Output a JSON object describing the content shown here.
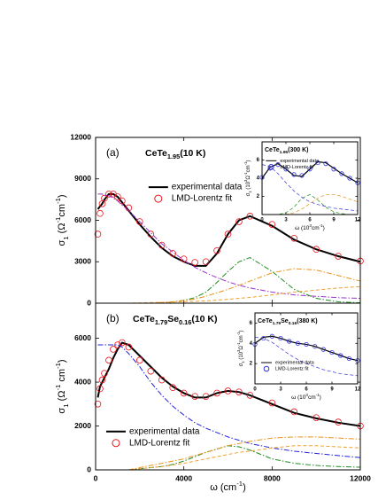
{
  "chart_data": [
    {
      "type": "line",
      "panel_label": "(a)",
      "title": [
        {
          "t": "CeTe"
        },
        {
          "t": "1.95",
          "s": "sub"
        },
        {
          "t": "(10 K)"
        }
      ],
      "ylabel": [
        {
          "t": "σ"
        },
        {
          "t": "1",
          "s": "sub"
        },
        {
          "t": " (Ω"
        },
        {
          "t": "-1",
          "s": "super"
        },
        {
          "t": "cm"
        },
        {
          "t": "-1",
          "s": "super"
        },
        {
          "t": ")"
        }
      ],
      "x": [
        100,
        200,
        300,
        400,
        600,
        800,
        1000,
        1200,
        1500,
        2000,
        2500,
        3000,
        3500,
        4000,
        4500,
        5000,
        5500,
        6000,
        6500,
        7000,
        8000,
        9000,
        10000,
        11000,
        12000
      ],
      "xlim": [
        0,
        12000
      ],
      "xticks": [
        0,
        4000,
        8000,
        12000
      ],
      "xtick_labels": false,
      "ylim": [
        0,
        12000
      ],
      "yticks": [
        0,
        3000,
        6000,
        9000,
        12000
      ],
      "legend": "upper center",
      "series": [
        {
          "name": "experimental data",
          "color": "#000000",
          "style": "solid",
          "values": [
            6800,
            7000,
            7200,
            7500,
            7900,
            7900,
            7700,
            7300,
            6700,
            5700,
            4800,
            4000,
            3400,
            3000,
            2700,
            2700,
            3600,
            5000,
            6000,
            6300,
            5600,
            4600,
            3900,
            3400,
            3000
          ]
        },
        {
          "name": "LMD-Lorentz fit",
          "color": "#e8141e",
          "style": "circles",
          "values": [
            5000,
            6500,
            7200,
            7600,
            7900,
            7900,
            7700,
            7400,
            6900,
            5900,
            5000,
            4200,
            3600,
            3200,
            2950,
            3000,
            3800,
            5000,
            5900,
            6300,
            5700,
            4700,
            3900,
            3400,
            3050
          ]
        },
        {
          "color": "#9933cc",
          "style": "dashdot",
          "values": [
            7900,
            7900,
            7900,
            7800,
            7800,
            7600,
            7400,
            7100,
            6700,
            5900,
            5100,
            4300,
            3700,
            3100,
            2600,
            2200,
            1850,
            1550,
            1300,
            1100,
            800,
            600,
            500,
            400,
            350
          ]
        },
        {
          "color": "#228b22",
          "style": "dashdot",
          "values": [
            0,
            0,
            0,
            0,
            0,
            0,
            0,
            0,
            0,
            0,
            0,
            0,
            100,
            200,
            400,
            800,
            1500,
            2300,
            3000,
            3300,
            2300,
            1000,
            350,
            100,
            30
          ]
        },
        {
          "color": "#e8941a",
          "style": "dashdot",
          "values": [
            0,
            0,
            0,
            0,
            0,
            0,
            0,
            0,
            0,
            0,
            0,
            50,
            100,
            200,
            300,
            500,
            750,
            1000,
            1300,
            1600,
            2200,
            2500,
            2400,
            2000,
            1600
          ]
        },
        {
          "color": "#f0a030",
          "style": "dash",
          "values": [
            0,
            0,
            0,
            0,
            0,
            0,
            0,
            0,
            0,
            20,
            40,
            60,
            80,
            100,
            130,
            170,
            220,
            280,
            350,
            420,
            600,
            800,
            950,
            1100,
            1200
          ]
        }
      ]
    },
    {
      "type": "line",
      "panel_label": "(b)",
      "title": [
        {
          "t": "CeTe"
        },
        {
          "t": "1.79",
          "s": "sub"
        },
        {
          "t": "Se"
        },
        {
          "t": "0.16",
          "s": "sub"
        },
        {
          "t": "(10 K)"
        }
      ],
      "ylabel": [
        {
          "t": "σ"
        },
        {
          "t": "1",
          "s": "sub"
        },
        {
          "t": " (Ω"
        },
        {
          "t": "-1",
          "s": "super"
        },
        {
          "t": " cm"
        },
        {
          "t": "-1",
          "s": "super"
        },
        {
          "t": ")"
        }
      ],
      "xlabel": [
        {
          "t": "ω  (cm"
        },
        {
          "t": "-1",
          "s": "super"
        },
        {
          "t": ")"
        }
      ],
      "x": [
        100,
        200,
        300,
        400,
        600,
        800,
        1000,
        1200,
        1500,
        2000,
        2500,
        3000,
        3500,
        4000,
        4500,
        5000,
        5500,
        6000,
        6500,
        7000,
        8000,
        9000,
        10000,
        11000,
        12000
      ],
      "xlim": [
        0,
        12000
      ],
      "xticks": [
        0,
        4000,
        8000,
        12000
      ],
      "ylim": [
        0,
        7600
      ],
      "yticks": [
        0,
        2000,
        4000,
        6000
      ],
      "legend": "lower center",
      "series": [
        {
          "name": "experimental data",
          "color": "#000000",
          "style": "solid",
          "values": [
            3300,
            3800,
            4000,
            4200,
            4600,
            5100,
            5500,
            5800,
            5700,
            5200,
            4700,
            4200,
            3800,
            3500,
            3300,
            3300,
            3500,
            3600,
            3550,
            3400,
            3000,
            2600,
            2350,
            2150,
            2000
          ]
        },
        {
          "name": "LMD-Lorentz fit",
          "color": "#e8141e",
          "style": "circles",
          "values": [
            3000,
            3700,
            4100,
            4400,
            5000,
            5500,
            5700,
            5800,
            5600,
            5000,
            4500,
            4100,
            3750,
            3500,
            3350,
            3350,
            3500,
            3600,
            3550,
            3400,
            3050,
            2650,
            2380,
            2180,
            2000
          ]
        },
        {
          "color": "#2222dd",
          "style": "dashdot",
          "values": [
            5700,
            5700,
            5700,
            5700,
            5700,
            5700,
            5700,
            5600,
            5300,
            4700,
            4000,
            3400,
            2900,
            2500,
            2150,
            1900,
            1700,
            1500,
            1350,
            1200,
            1000,
            850,
            750,
            650,
            560
          ]
        },
        {
          "color": "#228b22",
          "style": "dashdot",
          "values": [
            0,
            0,
            0,
            0,
            0,
            0,
            0,
            0,
            0,
            50,
            100,
            150,
            250,
            400,
            600,
            800,
            950,
            1100,
            1050,
            900,
            500,
            300,
            200,
            150,
            120
          ]
        },
        {
          "color": "#e8941a",
          "style": "dashdot",
          "values": [
            0,
            0,
            0,
            0,
            0,
            0,
            0,
            0,
            0,
            100,
            200,
            300,
            400,
            500,
            650,
            800,
            950,
            1100,
            1200,
            1300,
            1450,
            1500,
            1500,
            1450,
            1400
          ]
        },
        {
          "color": "#f0a030",
          "style": "dash",
          "values": [
            0,
            0,
            0,
            0,
            0,
            0,
            0,
            0,
            0,
            50,
            100,
            150,
            220,
            300,
            400,
            500,
            600,
            700,
            800,
            850,
            1000,
            1100,
            1100,
            1050,
            1000
          ]
        }
      ]
    },
    {
      "type": "line",
      "inset": true,
      "title": [
        {
          "t": "CeTe"
        },
        {
          "t": "1.95",
          "s": "sub"
        },
        {
          "t": "(300 K)"
        }
      ],
      "ylabel": [
        {
          "t": "σ"
        },
        {
          "t": "1",
          "s": "sub"
        },
        {
          "t": " (10"
        },
        {
          "t": "3",
          "s": "super"
        },
        {
          "t": "Ω"
        },
        {
          "t": "-1",
          "s": "super"
        },
        {
          "t": "cm"
        },
        {
          "t": "-1",
          "s": "super"
        },
        {
          "t": ")"
        }
      ],
      "xlabel": [
        {
          "t": "ω (10"
        },
        {
          "t": "3",
          "s": "super"
        },
        {
          "t": "cm"
        },
        {
          "t": "-1",
          "s": "super"
        },
        {
          "t": ")"
        }
      ],
      "x": [
        0,
        1,
        2,
        3,
        4,
        5,
        6,
        7,
        8,
        9,
        10,
        11,
        12
      ],
      "xlim": [
        0,
        12
      ],
      "xticks": [
        0,
        3,
        6,
        9,
        12
      ],
      "ylim": [
        0,
        8
      ],
      "yticks": [
        2,
        4,
        6
      ],
      "legend": "upper left",
      "series": [
        {
          "name": "experimental data",
          "color": "#000000",
          "style": "solid",
          "values": [
            4.0,
            5.2,
            5.6,
            5.0,
            4.3,
            4.2,
            5.0,
            5.8,
            5.7,
            5.1,
            4.5,
            4.0,
            3.5
          ]
        },
        {
          "name": "LMD-Lorentz fit",
          "color": "#3333dd",
          "style": "circles",
          "values": [
            4.1,
            5.1,
            5.5,
            5.0,
            4.4,
            4.3,
            5.0,
            5.7,
            5.6,
            5.0,
            4.5,
            4.0,
            3.5
          ]
        },
        {
          "color": "#3333dd",
          "style": "dash",
          "values": [
            5.5,
            5.3,
            4.5,
            3.5,
            2.6,
            1.9,
            1.4,
            1.1,
            0.9,
            0.7,
            0.6,
            0.5,
            0.4
          ]
        },
        {
          "color": "#228b22",
          "style": "dash",
          "values": [
            0,
            0,
            0,
            0.2,
            0.8,
            1.8,
            2.2,
            1.6,
            0.8,
            0.3,
            0.1,
            0,
            0
          ]
        },
        {
          "color": "#e8941a",
          "style": "dash",
          "values": [
            0,
            0,
            0,
            0,
            0.2,
            0.6,
            1.2,
            1.8,
            2.2,
            2.2,
            2.0,
            1.7,
            1.4
          ]
        }
      ]
    },
    {
      "type": "line",
      "inset": true,
      "title": [
        {
          "t": "CeTe"
        },
        {
          "t": "1.79",
          "s": "sub"
        },
        {
          "t": "Se"
        },
        {
          "t": "0.16",
          "s": "sub"
        },
        {
          "t": "(380 K)"
        }
      ],
      "ylabel": [
        {
          "t": "σ"
        },
        {
          "t": "1",
          "s": "sub"
        },
        {
          "t": " (10"
        },
        {
          "t": "3",
          "s": "super"
        },
        {
          "t": "Ω"
        },
        {
          "t": "-1",
          "s": "super"
        },
        {
          "t": "cm"
        },
        {
          "t": "-1",
          "s": "super"
        },
        {
          "t": ")"
        }
      ],
      "xlabel": [
        {
          "t": "ω (10"
        },
        {
          "t": "3",
          "s": "super"
        },
        {
          "t": "cm"
        },
        {
          "t": "-1",
          "s": "super"
        },
        {
          "t": ")"
        }
      ],
      "x": [
        0,
        1,
        2,
        3,
        4,
        5,
        6,
        7,
        8,
        9,
        10,
        11,
        12
      ],
      "xlim": [
        0,
        12
      ],
      "xticks": [
        0,
        3,
        6,
        9,
        12
      ],
      "ylim": [
        0,
        7
      ],
      "yticks": [
        2,
        4,
        6
      ],
      "legend": "lower left",
      "series": [
        {
          "name": "experimental data",
          "color": "#000000",
          "style": "solid",
          "values": [
            4.0,
            4.6,
            4.7,
            4.5,
            4.2,
            4.0,
            3.9,
            3.7,
            3.4,
            3.1,
            2.8,
            2.5,
            2.3
          ]
        },
        {
          "name": "LMD-Lorentz fit",
          "color": "#3333dd",
          "style": "circles",
          "values": [
            3.9,
            4.5,
            4.7,
            4.5,
            4.2,
            4.0,
            3.9,
            3.7,
            3.4,
            3.1,
            2.8,
            2.5,
            2.3
          ]
        },
        {
          "color": "#3333dd",
          "style": "dash",
          "values": [
            4.6,
            4.5,
            4.1,
            3.5,
            2.9,
            2.4,
            2.0,
            1.7,
            1.4,
            1.2,
            1.0,
            0.9,
            0.8
          ]
        }
      ]
    }
  ]
}
